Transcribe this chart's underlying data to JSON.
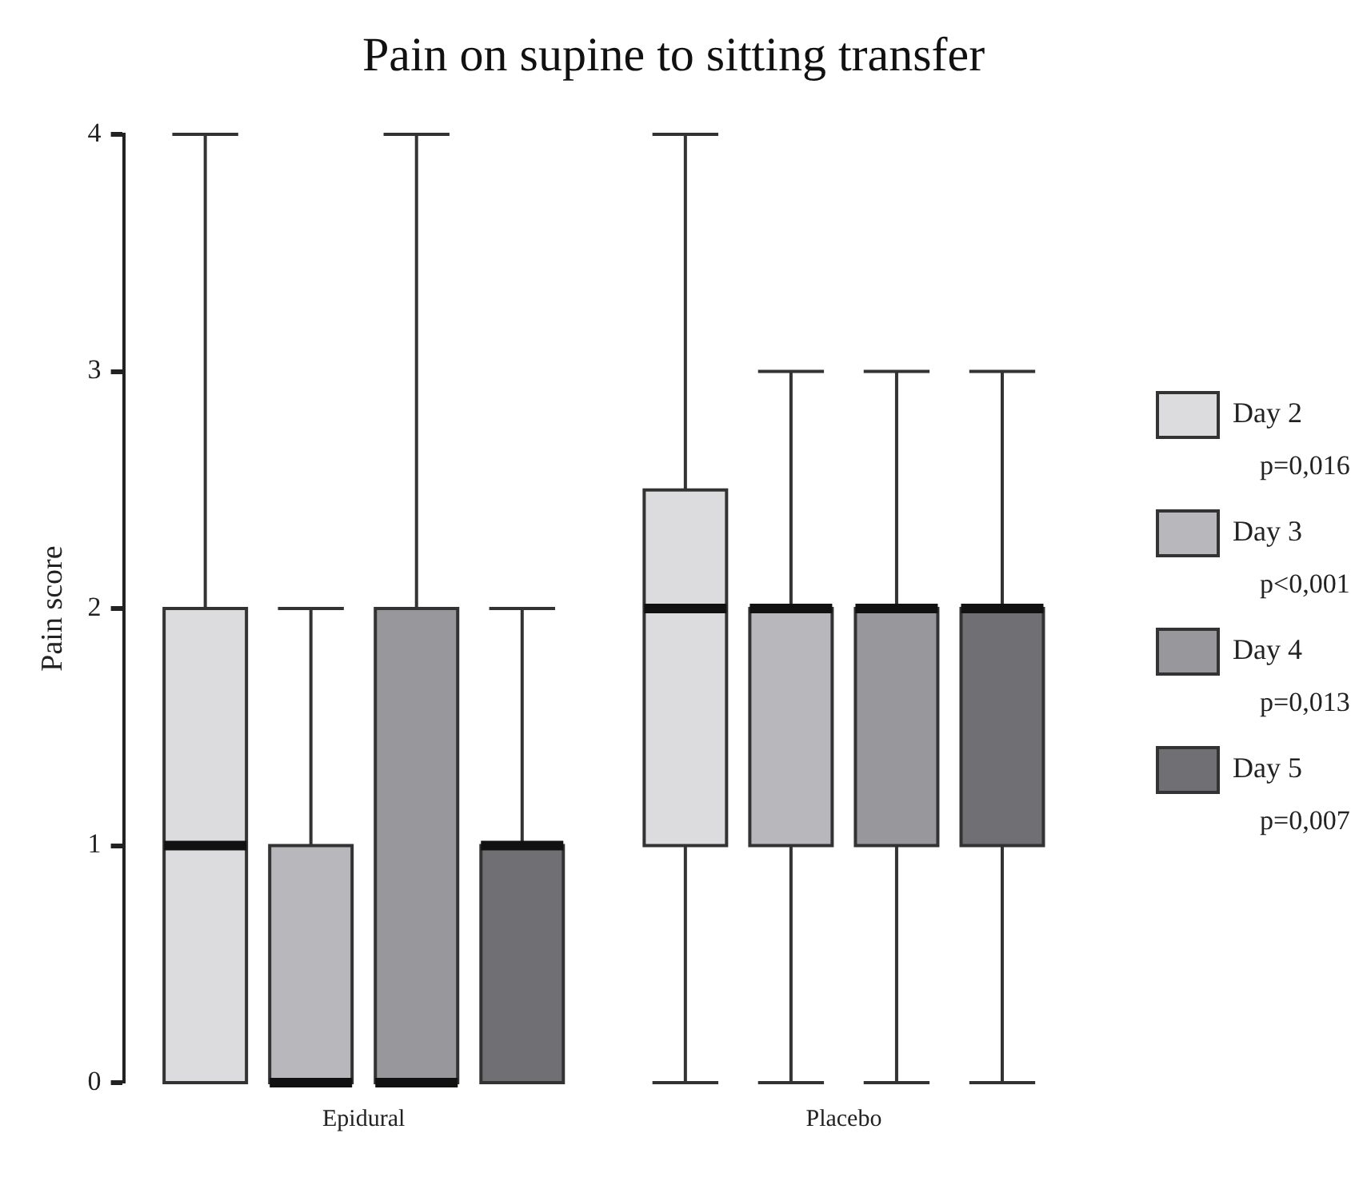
{
  "chart_data": {
    "type": "box",
    "title": "Pain on supine to sitting transfer",
    "ylabel": "Pain score",
    "categories": [
      "Epidural",
      "Placebo"
    ],
    "series": [
      {
        "name": "Day 2",
        "color": "#dcdcde",
        "boxes": [
          {
            "low": 0,
            "q1": 0,
            "median": 1,
            "q3": 2,
            "high": 4
          },
          {
            "low": 0,
            "q1": 1,
            "median": 2,
            "q3": 2.5,
            "high": 4
          }
        ]
      },
      {
        "name": "Day 3",
        "color": "#b8b8bc",
        "boxes": [
          {
            "low": 0,
            "q1": 0,
            "median": 0,
            "q3": 1,
            "high": 2
          },
          {
            "low": 0,
            "q1": 1,
            "median": 2,
            "q3": 2,
            "high": 3
          }
        ]
      },
      {
        "name": "Day 4",
        "color": "#98989c",
        "boxes": [
          {
            "low": 0,
            "q1": 0,
            "median": 0,
            "q3": 2,
            "high": 4
          },
          {
            "low": 0,
            "q1": 1,
            "median": 2,
            "q3": 2,
            "high": 3
          }
        ]
      },
      {
        "name": "Day 5",
        "color": "#707074",
        "boxes": [
          {
            "low": 0,
            "q1": 0,
            "median": 1,
            "q3": 1,
            "high": 2
          },
          {
            "low": 0,
            "q1": 1,
            "median": 2,
            "q3": 2,
            "high": 3
          }
        ]
      }
    ],
    "annotations": [
      "p=0,016",
      "p<0,001",
      "p=0,013",
      "p=0,007"
    ],
    "ylim": [
      0,
      4
    ],
    "yticks": [
      0,
      1,
      2,
      3,
      4
    ],
    "grid": false,
    "legend": "right"
  }
}
